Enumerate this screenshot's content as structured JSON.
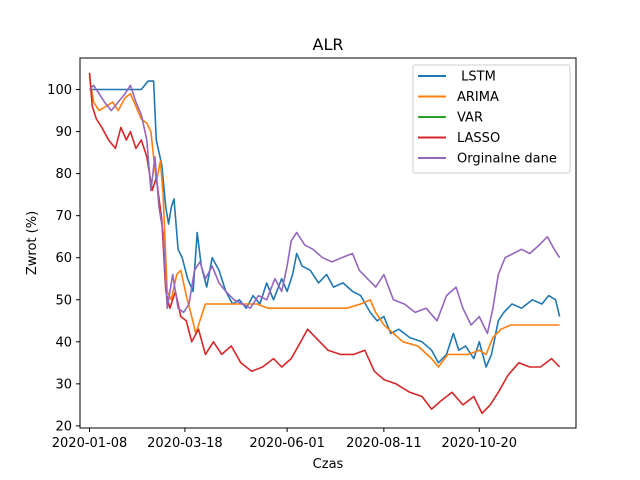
{
  "chart_data": {
    "type": "line",
    "title": "ALR",
    "xlabel": "Czas",
    "ylabel": "Zwrot (%)",
    "x_ticks": [
      "2020-01-08",
      "2020-03-18",
      "2020-06-01",
      "2020-08-11",
      "2020-10-20"
    ],
    "y_ticks": [
      20,
      30,
      40,
      50,
      60,
      70,
      80,
      90,
      100
    ],
    "xlim": [
      "2020-01-01",
      "2020-12-30"
    ],
    "ylim": [
      19.5,
      107.5
    ],
    "grid": false,
    "legend_position": "top-right",
    "series": [
      {
        "name": " LSTM",
        "color": "#1f77b4",
        "points": [
          [
            "2020-01-08",
            100
          ],
          [
            "2020-01-20",
            100
          ],
          [
            "2020-02-01",
            100
          ],
          [
            "2020-02-15",
            100
          ],
          [
            "2020-02-20",
            102
          ],
          [
            "2020-02-24",
            102
          ],
          [
            "2020-02-26",
            88
          ],
          [
            "2020-03-01",
            82
          ],
          [
            "2020-03-04",
            72
          ],
          [
            "2020-03-06",
            68
          ],
          [
            "2020-03-08",
            72
          ],
          [
            "2020-03-10",
            74
          ],
          [
            "2020-03-13",
            62
          ],
          [
            "2020-03-16",
            60
          ],
          [
            "2020-03-20",
            55
          ],
          [
            "2020-03-24",
            52
          ],
          [
            "2020-03-27",
            66
          ],
          [
            "2020-03-30",
            58
          ],
          [
            "2020-04-03",
            53
          ],
          [
            "2020-04-07",
            60
          ],
          [
            "2020-04-12",
            57
          ],
          [
            "2020-04-17",
            52
          ],
          [
            "2020-04-22",
            49
          ],
          [
            "2020-04-27",
            50
          ],
          [
            "2020-05-02",
            48
          ],
          [
            "2020-05-07",
            51
          ],
          [
            "2020-05-12",
            49
          ],
          [
            "2020-05-17",
            54
          ],
          [
            "2020-05-22",
            50
          ],
          [
            "2020-05-28",
            55
          ],
          [
            "2020-06-01",
            52
          ],
          [
            "2020-06-05",
            56
          ],
          [
            "2020-06-08",
            61
          ],
          [
            "2020-06-12",
            58
          ],
          [
            "2020-06-18",
            57
          ],
          [
            "2020-06-24",
            54
          ],
          [
            "2020-06-30",
            56
          ],
          [
            "2020-07-05",
            53
          ],
          [
            "2020-07-12",
            54
          ],
          [
            "2020-07-19",
            52
          ],
          [
            "2020-07-25",
            51
          ],
          [
            "2020-08-01",
            47
          ],
          [
            "2020-08-06",
            45
          ],
          [
            "2020-08-11",
            46
          ],
          [
            "2020-08-16",
            42
          ],
          [
            "2020-08-22",
            43
          ],
          [
            "2020-08-30",
            41
          ],
          [
            "2020-09-08",
            40
          ],
          [
            "2020-09-15",
            38
          ],
          [
            "2020-09-20",
            35
          ],
          [
            "2020-09-26",
            37
          ],
          [
            "2020-10-01",
            42
          ],
          [
            "2020-10-05",
            38
          ],
          [
            "2020-10-10",
            39
          ],
          [
            "2020-10-16",
            36
          ],
          [
            "2020-10-20",
            40
          ],
          [
            "2020-10-25",
            34
          ],
          [
            "2020-10-29",
            37
          ],
          [
            "2020-11-03",
            45
          ],
          [
            "2020-11-07",
            47
          ],
          [
            "2020-11-13",
            49
          ],
          [
            "2020-11-20",
            48
          ],
          [
            "2020-11-28",
            50
          ],
          [
            "2020-12-05",
            49
          ],
          [
            "2020-12-10",
            51
          ],
          [
            "2020-12-15",
            50
          ],
          [
            "2020-12-18",
            46
          ]
        ]
      },
      {
        "name": "ARIMA",
        "color": "#ff7f0e",
        "points": [
          [
            "2020-01-08",
            103
          ],
          [
            "2020-01-11",
            97
          ],
          [
            "2020-01-15",
            95
          ],
          [
            "2020-01-20",
            96
          ],
          [
            "2020-01-25",
            97
          ],
          [
            "2020-01-29",
            95
          ],
          [
            "2020-02-03",
            98
          ],
          [
            "2020-02-07",
            99
          ],
          [
            "2020-02-11",
            96
          ],
          [
            "2020-02-15",
            93
          ],
          [
            "2020-02-19",
            92
          ],
          [
            "2020-02-22",
            90
          ],
          [
            "2020-02-26",
            78
          ],
          [
            "2020-02-29",
            83
          ],
          [
            "2020-03-02",
            75
          ],
          [
            "2020-03-05",
            52
          ],
          [
            "2020-03-08",
            50
          ],
          [
            "2020-03-12",
            56
          ],
          [
            "2020-03-15",
            57
          ],
          [
            "2020-03-19",
            51
          ],
          [
            "2020-03-23",
            46
          ],
          [
            "2020-03-26",
            42
          ],
          [
            "2020-03-29",
            45
          ],
          [
            "2020-04-02",
            49
          ],
          [
            "2020-04-10",
            49
          ],
          [
            "2020-04-20",
            49
          ],
          [
            "2020-05-01",
            49
          ],
          [
            "2020-05-10",
            49
          ],
          [
            "2020-05-18",
            48
          ],
          [
            "2020-06-01",
            48
          ],
          [
            "2020-06-15",
            48
          ],
          [
            "2020-07-01",
            48
          ],
          [
            "2020-07-15",
            48
          ],
          [
            "2020-07-25",
            49
          ],
          [
            "2020-08-01",
            50
          ],
          [
            "2020-08-05",
            47
          ],
          [
            "2020-08-11",
            44
          ],
          [
            "2020-08-18",
            42
          ],
          [
            "2020-08-25",
            40
          ],
          [
            "2020-09-05",
            39
          ],
          [
            "2020-09-15",
            36
          ],
          [
            "2020-09-20",
            34
          ],
          [
            "2020-09-27",
            37
          ],
          [
            "2020-10-05",
            37
          ],
          [
            "2020-10-12",
            37
          ],
          [
            "2020-10-20",
            38
          ],
          [
            "2020-10-25",
            37
          ],
          [
            "2020-10-30",
            41
          ],
          [
            "2020-11-05",
            43
          ],
          [
            "2020-11-12",
            44
          ],
          [
            "2020-11-25",
            44
          ],
          [
            "2020-12-10",
            44
          ],
          [
            "2020-12-18",
            44
          ]
        ]
      },
      {
        "name": "VAR",
        "color": "#2ca02c",
        "points": []
      },
      {
        "name": "LASSO",
        "color": "#d62728",
        "points": [
          [
            "2020-01-08",
            104
          ],
          [
            "2020-01-10",
            96
          ],
          [
            "2020-01-13",
            93
          ],
          [
            "2020-01-17",
            91
          ],
          [
            "2020-01-22",
            88
          ],
          [
            "2020-01-27",
            86
          ],
          [
            "2020-01-31",
            91
          ],
          [
            "2020-02-04",
            88
          ],
          [
            "2020-02-07",
            90
          ],
          [
            "2020-02-11",
            86
          ],
          [
            "2020-02-15",
            88
          ],
          [
            "2020-02-19",
            84
          ],
          [
            "2020-02-23",
            76
          ],
          [
            "2020-02-26",
            79
          ],
          [
            "2020-03-01",
            69
          ],
          [
            "2020-03-04",
            52
          ],
          [
            "2020-03-07",
            48
          ],
          [
            "2020-03-11",
            52
          ],
          [
            "2020-03-15",
            46
          ],
          [
            "2020-03-19",
            45
          ],
          [
            "2020-03-23",
            40
          ],
          [
            "2020-03-28",
            43
          ],
          [
            "2020-04-02",
            37
          ],
          [
            "2020-04-08",
            40
          ],
          [
            "2020-04-14",
            37
          ],
          [
            "2020-04-21",
            39
          ],
          [
            "2020-04-28",
            35
          ],
          [
            "2020-05-06",
            33
          ],
          [
            "2020-05-14",
            34
          ],
          [
            "2020-05-22",
            36
          ],
          [
            "2020-05-28",
            34
          ],
          [
            "2020-06-04",
            36
          ],
          [
            "2020-06-11",
            40
          ],
          [
            "2020-06-16",
            43
          ],
          [
            "2020-06-22",
            41
          ],
          [
            "2020-07-01",
            38
          ],
          [
            "2020-07-10",
            37
          ],
          [
            "2020-07-20",
            37
          ],
          [
            "2020-07-28",
            38
          ],
          [
            "2020-08-04",
            33
          ],
          [
            "2020-08-11",
            31
          ],
          [
            "2020-08-20",
            30
          ],
          [
            "2020-08-30",
            28
          ],
          [
            "2020-09-08",
            27
          ],
          [
            "2020-09-15",
            24
          ],
          [
            "2020-09-22",
            26
          ],
          [
            "2020-09-30",
            28
          ],
          [
            "2020-10-08",
            25
          ],
          [
            "2020-10-16",
            27
          ],
          [
            "2020-10-22",
            23
          ],
          [
            "2020-10-28",
            25
          ],
          [
            "2020-11-03",
            28
          ],
          [
            "2020-11-10",
            32
          ],
          [
            "2020-11-18",
            35
          ],
          [
            "2020-11-26",
            34
          ],
          [
            "2020-12-04",
            34
          ],
          [
            "2020-12-12",
            36
          ],
          [
            "2020-12-18",
            34
          ]
        ]
      },
      {
        "name": "Orginalne dane",
        "color": "#9467bd",
        "points": [
          [
            "2020-01-08",
            100
          ],
          [
            "2020-01-11",
            101
          ],
          [
            "2020-01-15",
            99
          ],
          [
            "2020-01-19",
            97
          ],
          [
            "2020-01-24",
            95
          ],
          [
            "2020-01-29",
            97
          ],
          [
            "2020-02-03",
            99
          ],
          [
            "2020-02-07",
            101
          ],
          [
            "2020-02-11",
            97
          ],
          [
            "2020-02-15",
            94
          ],
          [
            "2020-02-19",
            88
          ],
          [
            "2020-02-22",
            76
          ],
          [
            "2020-02-25",
            84
          ],
          [
            "2020-02-28",
            72
          ],
          [
            "2020-03-02",
            66
          ],
          [
            "2020-03-05",
            48
          ],
          [
            "2020-03-09",
            56
          ],
          [
            "2020-03-13",
            48
          ],
          [
            "2020-03-17",
            47
          ],
          [
            "2020-03-21",
            49
          ],
          [
            "2020-03-25",
            57
          ],
          [
            "2020-03-29",
            59
          ],
          [
            "2020-04-02",
            55
          ],
          [
            "2020-04-07",
            58
          ],
          [
            "2020-04-12",
            54
          ],
          [
            "2020-04-17",
            52
          ],
          [
            "2020-04-23",
            50
          ],
          [
            "2020-04-29",
            49
          ],
          [
            "2020-05-05",
            48
          ],
          [
            "2020-05-11",
            51
          ],
          [
            "2020-05-17",
            50
          ],
          [
            "2020-05-23",
            55
          ],
          [
            "2020-05-28",
            52
          ],
          [
            "2020-06-01",
            58
          ],
          [
            "2020-06-04",
            64
          ],
          [
            "2020-06-08",
            66
          ],
          [
            "2020-06-14",
            63
          ],
          [
            "2020-06-20",
            62
          ],
          [
            "2020-06-27",
            60
          ],
          [
            "2020-07-04",
            59
          ],
          [
            "2020-07-11",
            60
          ],
          [
            "2020-07-19",
            61
          ],
          [
            "2020-07-24",
            57
          ],
          [
            "2020-07-30",
            55
          ],
          [
            "2020-08-05",
            53
          ],
          [
            "2020-08-11",
            56
          ],
          [
            "2020-08-18",
            50
          ],
          [
            "2020-08-26",
            49
          ],
          [
            "2020-09-03",
            47
          ],
          [
            "2020-09-11",
            48
          ],
          [
            "2020-09-19",
            45
          ],
          [
            "2020-09-26",
            51
          ],
          [
            "2020-10-03",
            53
          ],
          [
            "2020-10-08",
            48
          ],
          [
            "2020-10-14",
            44
          ],
          [
            "2020-10-20",
            46
          ],
          [
            "2020-10-26",
            42
          ],
          [
            "2020-10-30",
            48
          ],
          [
            "2020-11-03",
            56
          ],
          [
            "2020-11-08",
            60
          ],
          [
            "2020-11-14",
            61
          ],
          [
            "2020-11-20",
            62
          ],
          [
            "2020-11-26",
            61
          ],
          [
            "2020-12-03",
            63
          ],
          [
            "2020-12-09",
            65
          ],
          [
            "2020-12-14",
            62
          ],
          [
            "2020-12-18",
            60
          ]
        ]
      }
    ]
  }
}
